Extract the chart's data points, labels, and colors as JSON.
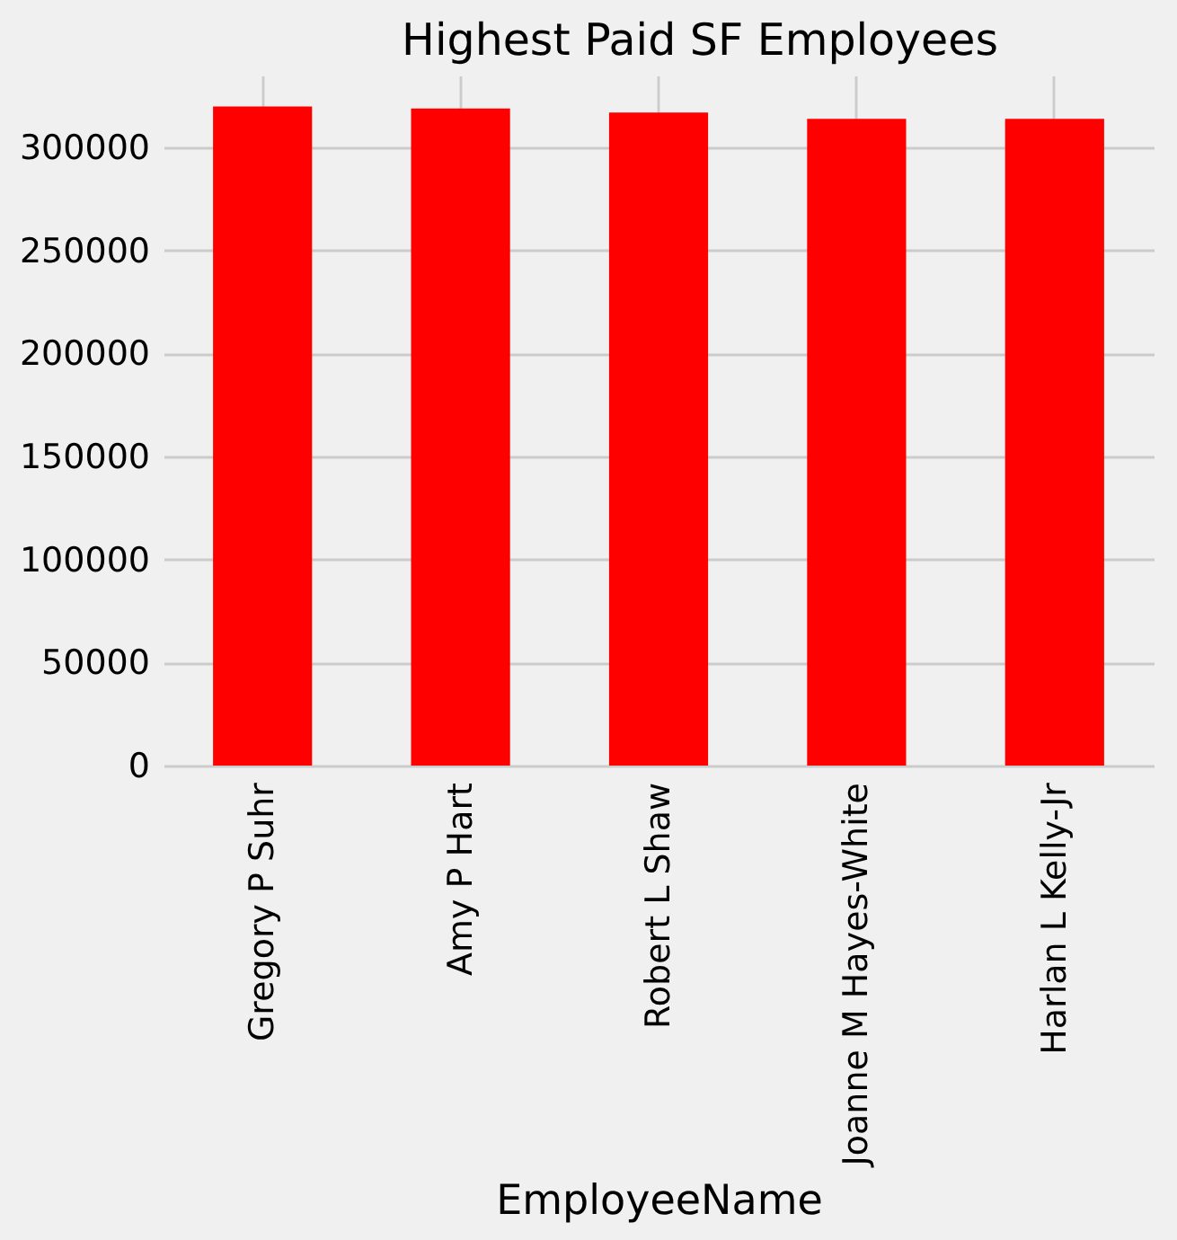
{
  "chart_data": {
    "type": "bar",
    "title": "Highest Paid SF Employees",
    "xlabel": "EmployeeName",
    "categories": [
      "Gregory P Suhr",
      "Amy P Hart",
      "Robert L Shaw",
      "Joanne M Hayes-White",
      "Harlan L Kelly-Jr"
    ],
    "values": [
      320000,
      319000,
      317000,
      314000,
      314000
    ],
    "color": "#ff0000",
    "ylim": [
      0,
      335000
    ],
    "yticks": [
      0,
      50000,
      100000,
      150000,
      200000,
      250000,
      300000
    ],
    "grid": true
  }
}
